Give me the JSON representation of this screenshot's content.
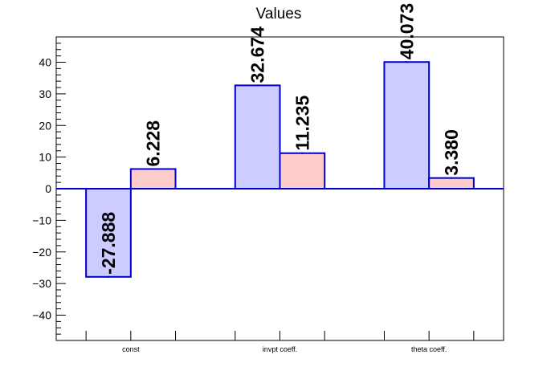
{
  "chart_data": {
    "type": "bar",
    "title": "Values",
    "categories": [
      "const",
      "invpt coeff.",
      "theta coeff."
    ],
    "series": [
      {
        "values": [
          -27.888,
          32.674,
          40.073
        ],
        "labels": [
          "-27.888",
          "32.674",
          "40.073"
        ],
        "fill": "#ccccff",
        "stroke": "#0000cc"
      },
      {
        "values": [
          6.228,
          11.235,
          3.38
        ],
        "labels": [
          "6.228",
          "11.235",
          "3.380"
        ],
        "fill": "#ffcccc",
        "stroke": "#0000cc"
      }
    ],
    "ylim": [
      -48,
      48
    ],
    "yticks": [
      -40,
      -30,
      -20,
      -10,
      0,
      10,
      20,
      30,
      40
    ],
    "ytick_labels": [
      "−40",
      "−30",
      "−20",
      "−10",
      "0",
      "10",
      "20",
      "30",
      "40"
    ],
    "xlabel": "",
    "ylabel": "",
    "grid": false,
    "zero_line_color": "#0000cc"
  }
}
